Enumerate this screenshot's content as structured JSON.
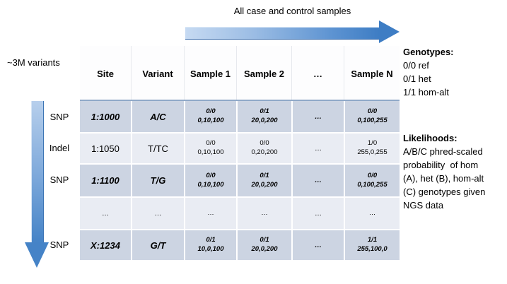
{
  "top_arrow": {
    "label": "All case and control samples"
  },
  "left_axis": {
    "label": "~3M variants"
  },
  "table": {
    "headers": [
      "Site",
      "Variant",
      "Sample 1",
      "Sample 2",
      "…",
      "Sample N"
    ],
    "rows": [
      {
        "type": "SNP",
        "site": "1:1000",
        "variant": "A/C",
        "sample1": [
          "0/0",
          "0,10,100"
        ],
        "sample2": [
          "0/1",
          "20,0,200"
        ],
        "dots": "…",
        "sampleN": [
          "0/0",
          "0,100,255"
        ],
        "emphasized": true
      },
      {
        "type": "Indel",
        "site": "1:1050",
        "variant": "T/TC",
        "sample1": [
          "0/0",
          "0,10,100"
        ],
        "sample2": [
          "0/0",
          "0,20,200"
        ],
        "dots": "…",
        "sampleN": [
          "1/0",
          "255,0,255"
        ],
        "emphasized": false
      },
      {
        "type": "SNP",
        "site": "1:1100",
        "variant": "T/G",
        "sample1": [
          "0/0",
          "0,10,100"
        ],
        "sample2": [
          "0/1",
          "20,0,200"
        ],
        "dots": "…",
        "sampleN": [
          "0/0",
          "0,100,255"
        ],
        "emphasized": true
      },
      {
        "type": "",
        "site": "…",
        "variant": "…",
        "sample1": [
          "…",
          ""
        ],
        "sample2": [
          "…",
          ""
        ],
        "dots": "…",
        "sampleN": [
          "…",
          ""
        ],
        "emphasized": false
      },
      {
        "type": "SNP",
        "site": "X:1234",
        "variant": "G/T",
        "sample1": [
          "0/1",
          "10,0,100"
        ],
        "sample2": [
          "0/1",
          "20,0,200"
        ],
        "dots": "…",
        "sampleN": [
          "1/1",
          "255,100,0"
        ],
        "emphasized": true
      }
    ]
  },
  "legend": {
    "genotypes_title": "Genotypes:",
    "genotypes_lines": [
      "0/0 ref",
      "0/1 het",
      "1/1 hom-alt"
    ],
    "likelihoods_title": "Likelihoods:",
    "likelihoods_lines": [
      "A/B/C phred-scaled",
      "probability  of hom",
      "(A), het (B), hom-alt",
      "(C) genotypes given",
      "NGS data"
    ]
  },
  "colors": {
    "arrow_blue_light": "#c6daf2",
    "arrow_blue_dark": "#3e7dc4",
    "row_dark": "#ccd4e2",
    "row_light": "#e9ecf3",
    "header_separator": "#90a9c8"
  }
}
